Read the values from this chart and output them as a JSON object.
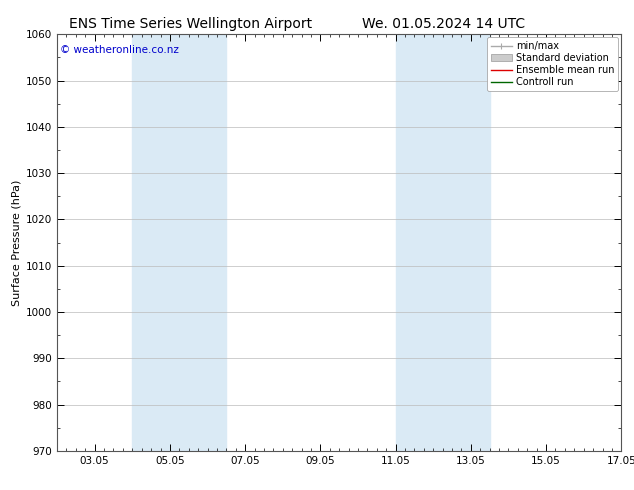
{
  "title_left": "ENS Time Series Wellington Airport",
  "title_right": "We. 01.05.2024 14 UTC",
  "ylabel": "Surface Pressure (hPa)",
  "ylim": [
    970,
    1060
  ],
  "yticks": [
    970,
    980,
    990,
    1000,
    1010,
    1020,
    1030,
    1040,
    1050,
    1060
  ],
  "xlim_start": 1.0,
  "xlim_end": 16.0,
  "xtick_labels": [
    "03.05",
    "05.05",
    "07.05",
    "09.05",
    "11.05",
    "13.05",
    "15.05",
    "17.05"
  ],
  "xtick_positions": [
    2,
    4,
    6,
    8,
    10,
    12,
    14,
    16
  ],
  "shaded_bands": [
    {
      "x_start": 3.0,
      "x_end": 5.5
    },
    {
      "x_start": 10.0,
      "x_end": 12.5
    }
  ],
  "shade_color": "#daeaf5",
  "copyright_text": "© weatheronline.co.nz",
  "copyright_color": "#0000cc",
  "legend_entries": [
    {
      "label": "min/max",
      "color": "#aaaaaa",
      "lw": 1.0
    },
    {
      "label": "Standard deviation",
      "color": "#cccccc",
      "lw": 6
    },
    {
      "label": "Ensemble mean run",
      "color": "#dd0000",
      "lw": 1.0
    },
    {
      "label": "Controll run",
      "color": "#006600",
      "lw": 1.0
    }
  ],
  "background_color": "#ffffff",
  "plot_bg_color": "#ffffff",
  "grid_color": "#bbbbbb",
  "title_fontsize": 10,
  "ylabel_fontsize": 8,
  "tick_fontsize": 7.5,
  "legend_fontsize": 7,
  "copyright_fontsize": 7.5
}
